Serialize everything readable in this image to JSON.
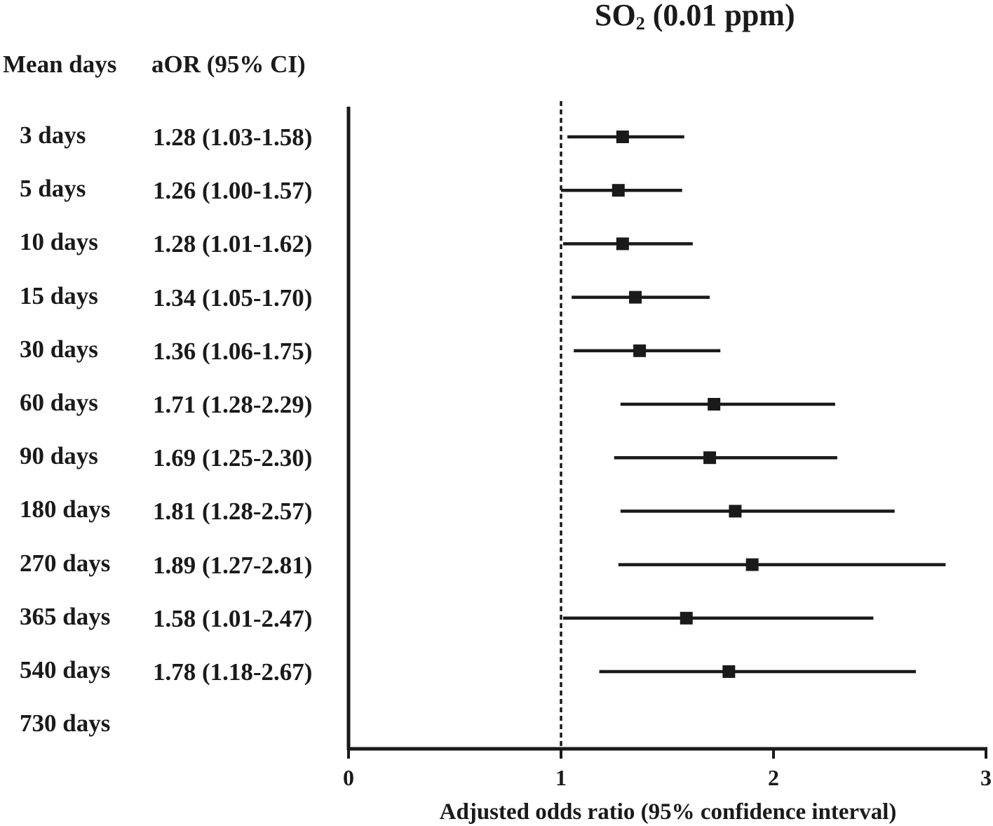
{
  "chart_data": {
    "type": "forest",
    "title_main": "SO",
    "title_sub": "2",
    "title_rest": " (0.01 ppm)",
    "column_headers": {
      "days": "Mean days",
      "aor": "aOR (95% CI)"
    },
    "xlabel": "Adjusted odds ratio (95% confidence interval)",
    "xlim": [
      0,
      3
    ],
    "x_ticks": [
      0,
      1,
      2,
      3
    ],
    "x_tick_labels": [
      "0",
      "1",
      "2",
      "3"
    ],
    "reference_line": 1,
    "rows": [
      {
        "label": "3 days",
        "aor_text": "1.28 (1.03-1.58)",
        "or": 1.28,
        "lower": 1.03,
        "upper": 1.58
      },
      {
        "label": "5 days",
        "aor_text": "1.26 (1.00-1.57)",
        "or": 1.26,
        "lower": 1.0,
        "upper": 1.57
      },
      {
        "label": "10 days",
        "aor_text": "1.28 (1.01-1.62)",
        "or": 1.28,
        "lower": 1.01,
        "upper": 1.62
      },
      {
        "label": "15 days",
        "aor_text": "1.34 (1.05-1.70)",
        "or": 1.34,
        "lower": 1.05,
        "upper": 1.7
      },
      {
        "label": "30 days",
        "aor_text": "1.36 (1.06-1.75)",
        "or": 1.36,
        "lower": 1.06,
        "upper": 1.75
      },
      {
        "label": "60 days",
        "aor_text": "1.71 (1.28-2.29)",
        "or": 1.71,
        "lower": 1.28,
        "upper": 2.29
      },
      {
        "label": "90 days",
        "aor_text": "1.69 (1.25-2.30)",
        "or": 1.69,
        "lower": 1.25,
        "upper": 2.3
      },
      {
        "label": "180 days",
        "aor_text": "1.81 (1.28-2.57)",
        "or": 1.81,
        "lower": 1.28,
        "upper": 2.57
      },
      {
        "label": "270 days",
        "aor_text": "1.89 (1.27-2.81)",
        "or": 1.89,
        "lower": 1.27,
        "upper": 2.81
      },
      {
        "label": "365 days",
        "aor_text": "1.58 (1.01-2.47)",
        "or": 1.58,
        "lower": 1.01,
        "upper": 2.47
      },
      {
        "label": "540 days",
        "aor_text": "1.78 (1.18-2.67)",
        "or": 1.78,
        "lower": 1.18,
        "upper": 2.67
      },
      {
        "label": "730 days",
        "aor_text": "",
        "or": null,
        "lower": null,
        "upper": null
      }
    ]
  }
}
